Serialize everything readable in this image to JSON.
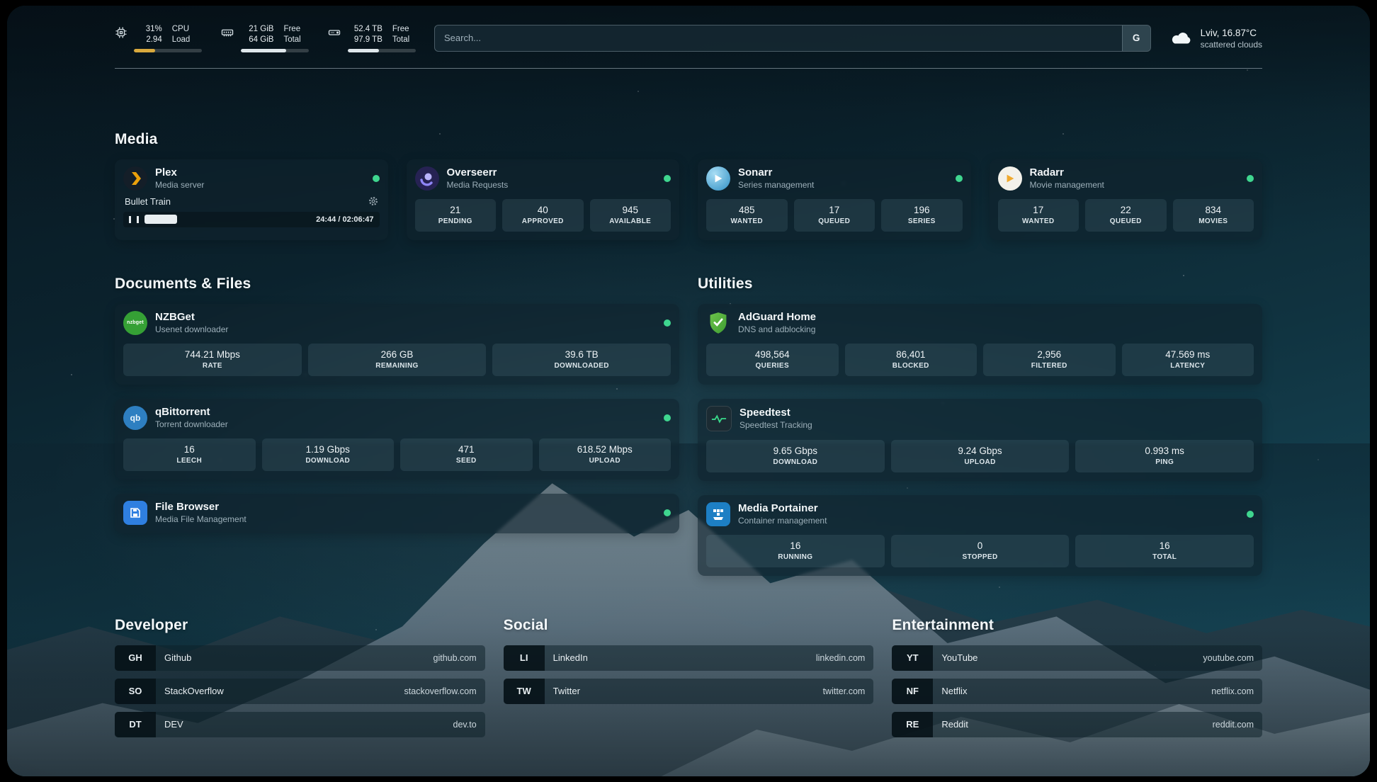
{
  "topbar": {
    "cpu": {
      "value1": "31%",
      "value2": "2.94",
      "label1": "CPU",
      "label2": "Load",
      "bar_percent": 31
    },
    "memory": {
      "value1": "21 GiB",
      "value2": "64 GiB",
      "label1": "Free",
      "label2": "Total",
      "bar_percent": 67
    },
    "disk": {
      "value1": "52.4 TB",
      "value2": "97.9 TB",
      "label1": "Free",
      "label2": "Total",
      "bar_percent": 46
    },
    "search": {
      "placeholder": "Search...",
      "provider_label": "G"
    },
    "weather": {
      "location": "Lviv, 16.87°C",
      "condition": "scattered clouds"
    }
  },
  "media": {
    "title": "Media",
    "plex": {
      "title": "Plex",
      "subtitle": "Media server",
      "now_playing": "Bullet Train",
      "time": "24:44 / 02:06:47",
      "progress_percent": 19.5
    },
    "overseerr": {
      "title": "Overseerr",
      "subtitle": "Media Requests",
      "stats": [
        {
          "value": "21",
          "label": "PENDING"
        },
        {
          "value": "40",
          "label": "APPROVED"
        },
        {
          "value": "945",
          "label": "AVAILABLE"
        }
      ]
    },
    "sonarr": {
      "title": "Sonarr",
      "subtitle": "Series management",
      "stats": [
        {
          "value": "485",
          "label": "WANTED"
        },
        {
          "value": "17",
          "label": "QUEUED"
        },
        {
          "value": "196",
          "label": "SERIES"
        }
      ]
    },
    "radarr": {
      "title": "Radarr",
      "subtitle": "Movie management",
      "stats": [
        {
          "value": "17",
          "label": "WANTED"
        },
        {
          "value": "22",
          "label": "QUEUED"
        },
        {
          "value": "834",
          "label": "MOVIES"
        }
      ]
    }
  },
  "documents": {
    "title": "Documents & Files",
    "nzbget": {
      "title": "NZBGet",
      "subtitle": "Usenet downloader",
      "icon_text": "nzbget",
      "stats": [
        {
          "value": "744.21 Mbps",
          "label": "RATE"
        },
        {
          "value": "266 GB",
          "label": "REMAINING"
        },
        {
          "value": "39.6 TB",
          "label": "DOWNLOADED"
        }
      ]
    },
    "qbittorrent": {
      "title": "qBittorrent",
      "subtitle": "Torrent downloader",
      "icon_text": "qb",
      "stats": [
        {
          "value": "16",
          "label": "LEECH"
        },
        {
          "value": "1.19 Gbps",
          "label": "DOWNLOAD"
        },
        {
          "value": "471",
          "label": "SEED"
        },
        {
          "value": "618.52 Mbps",
          "label": "UPLOAD"
        }
      ]
    },
    "filebrowser": {
      "title": "File Browser",
      "subtitle": "Media File Management"
    }
  },
  "utilities": {
    "title": "Utilities",
    "adguard": {
      "title": "AdGuard Home",
      "subtitle": "DNS and adblocking",
      "stats": [
        {
          "value": "498,564",
          "label": "QUERIES"
        },
        {
          "value": "86,401",
          "label": "BLOCKED"
        },
        {
          "value": "2,956",
          "label": "FILTERED"
        },
        {
          "value": "47.569 ms",
          "label": "LATENCY"
        }
      ]
    },
    "speedtest": {
      "title": "Speedtest",
      "subtitle": "Speedtest Tracking",
      "stats": [
        {
          "value": "9.65 Gbps",
          "label": "DOWNLOAD"
        },
        {
          "value": "9.24 Gbps",
          "label": "UPLOAD"
        },
        {
          "value": "0.993 ms",
          "label": "PING"
        }
      ]
    },
    "portainer": {
      "title": "Media Portainer",
      "subtitle": "Container management",
      "stats": [
        {
          "value": "16",
          "label": "RUNNING"
        },
        {
          "value": "0",
          "label": "STOPPED"
        },
        {
          "value": "16",
          "label": "TOTAL"
        }
      ]
    }
  },
  "bookmarks": {
    "developer": {
      "title": "Developer",
      "items": [
        {
          "abbr": "GH",
          "name": "Github",
          "url": "github.com"
        },
        {
          "abbr": "SO",
          "name": "StackOverflow",
          "url": "stackoverflow.com"
        },
        {
          "abbr": "DT",
          "name": "DEV",
          "url": "dev.to"
        }
      ]
    },
    "social": {
      "title": "Social",
      "items": [
        {
          "abbr": "LI",
          "name": "LinkedIn",
          "url": "linkedin.com"
        },
        {
          "abbr": "TW",
          "name": "Twitter",
          "url": "twitter.com"
        }
      ]
    },
    "entertainment": {
      "title": "Entertainment",
      "items": [
        {
          "abbr": "YT",
          "name": "YouTube",
          "url": "youtube.com"
        },
        {
          "abbr": "NF",
          "name": "Netflix",
          "url": "netflix.com"
        },
        {
          "abbr": "RE",
          "name": "Reddit",
          "url": "reddit.com"
        }
      ]
    }
  },
  "colors": {
    "status_online": "#3fd68f",
    "plex_brand": "#e5a00d",
    "adguard_brand": "#5bc236",
    "background_tint": "#0e2833"
  }
}
